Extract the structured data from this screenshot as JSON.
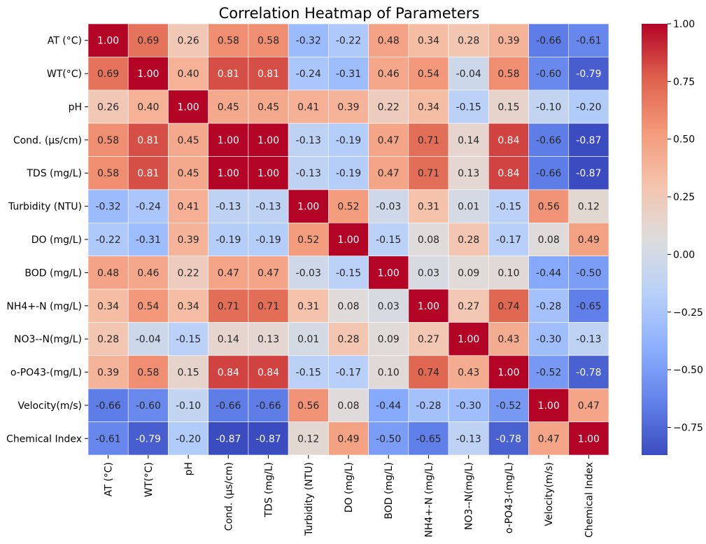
{
  "chart_data": {
    "type": "heatmap",
    "title": "Correlation Heatmap of Parameters",
    "xlabel": "",
    "ylabel": "",
    "rows": [
      "AT (°C)",
      "WT(°C) ",
      "pH",
      "Cond. (µs/cm)",
      "TDS (mg/L)",
      "Turbidity (NTU)",
      "DO (mg/L)",
      "BOD (mg/L)",
      "NH4+-N (mg/L)",
      "NO3--N(mg/L)",
      "o-PO43-(mg/L)",
      "Velocity(m/s)",
      "Chemical Index"
    ],
    "columns": [
      "AT (°C)",
      "WT(°C)",
      "pH",
      "Cond. (µs/cm)",
      "TDS (mg/L)",
      "Turbidity (NTU)",
      "DO (mg/L)",
      "BOD (mg/L)",
      "NH4+-N (mg/L)",
      "NO3--N(mg/L)",
      "o-PO43-(mg/L)",
      "Velocity(m/s)",
      "Chemical Index"
    ],
    "values": [
      [
        1.0,
        0.69,
        0.26,
        0.58,
        0.58,
        -0.32,
        -0.22,
        0.48,
        0.34,
        0.28,
        0.39,
        -0.66,
        -0.61
      ],
      [
        0.69,
        1.0,
        0.4,
        0.81,
        0.81,
        -0.24,
        -0.31,
        0.46,
        0.54,
        -0.04,
        0.58,
        -0.6,
        -0.79
      ],
      [
        0.26,
        0.4,
        1.0,
        0.45,
        0.45,
        0.41,
        0.39,
        0.22,
        0.34,
        -0.15,
        0.15,
        -0.1,
        -0.2
      ],
      [
        0.58,
        0.81,
        0.45,
        1.0,
        1.0,
        -0.13,
        -0.19,
        0.47,
        0.71,
        0.14,
        0.84,
        -0.66,
        -0.87
      ],
      [
        0.58,
        0.81,
        0.45,
        1.0,
        1.0,
        -0.13,
        -0.19,
        0.47,
        0.71,
        0.13,
        0.84,
        -0.66,
        -0.87
      ],
      [
        -0.32,
        -0.24,
        0.41,
        -0.13,
        -0.13,
        1.0,
        0.52,
        -0.03,
        0.31,
        0.01,
        -0.15,
        0.56,
        0.12
      ],
      [
        -0.22,
        -0.31,
        0.39,
        -0.19,
        -0.19,
        0.52,
        1.0,
        -0.15,
        0.08,
        0.28,
        -0.17,
        0.08,
        0.49
      ],
      [
        0.48,
        0.46,
        0.22,
        0.47,
        0.47,
        -0.03,
        -0.15,
        1.0,
        0.03,
        0.09,
        0.1,
        -0.44,
        -0.5
      ],
      [
        0.34,
        0.54,
        0.34,
        0.71,
        0.71,
        0.31,
        0.08,
        0.03,
        1.0,
        0.27,
        0.74,
        -0.28,
        -0.65
      ],
      [
        0.28,
        -0.04,
        -0.15,
        0.14,
        0.13,
        0.01,
        0.28,
        0.09,
        0.27,
        1.0,
        0.43,
        -0.3,
        -0.13
      ],
      [
        0.39,
        0.58,
        0.15,
        0.84,
        0.84,
        -0.15,
        -0.17,
        0.1,
        0.74,
        0.43,
        1.0,
        -0.52,
        -0.78
      ],
      [
        -0.66,
        -0.6,
        -0.1,
        -0.66,
        -0.66,
        0.56,
        0.08,
        -0.44,
        -0.28,
        -0.3,
        -0.52,
        1.0,
        0.47
      ],
      [
        -0.61,
        -0.79,
        -0.2,
        -0.87,
        -0.87,
        0.12,
        0.49,
        -0.5,
        -0.65,
        -0.13,
        -0.78,
        0.47,
        1.0
      ]
    ],
    "colormap": "coolwarm",
    "color_range": [
      -0.87,
      1.0
    ],
    "colorbar_ticks": [
      "1.00",
      "0.75",
      "0.50",
      "0.25",
      "0.00",
      "−0.25",
      "−0.50",
      "−0.75"
    ],
    "colorbar_tick_values": [
      1.0,
      0.75,
      0.5,
      0.25,
      0.0,
      -0.25,
      -0.5,
      -0.75
    ],
    "annotations": true,
    "annotation_format": "0.00",
    "grid": false,
    "cell_border_color": "#ffffff"
  }
}
